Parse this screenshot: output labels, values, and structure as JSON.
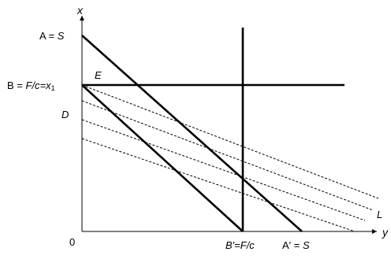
{
  "labels": {
    "x_axis": "x",
    "y_axis": "y",
    "origin": "0",
    "A_prefix": "A = ",
    "A_var": "S",
    "B_prefix": "B = ",
    "B_var": "F/c",
    "B_eq": "=x",
    "B_sub": "1",
    "E": "E",
    "D": "D",
    "L": "L",
    "Bp_prefix": "B'=",
    "Bp_var": "F/c",
    "Ap_prefix": "A' = ",
    "Ap_var": "S"
  },
  "colors": {
    "line": "#000000",
    "background": "#ffffff"
  }
}
